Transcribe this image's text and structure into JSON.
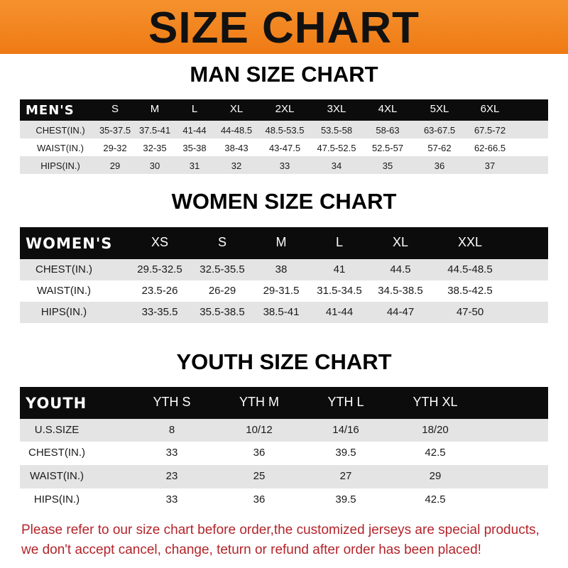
{
  "banner": {
    "title": "SIZE CHART",
    "color": "#ef7a14"
  },
  "men": {
    "heading": "MAN SIZE CHART",
    "header": [
      "MEN'S",
      "S",
      "M",
      "L",
      "XL",
      "2XL",
      "3XL",
      "4XL",
      "5XL",
      "6XL"
    ],
    "rows": [
      [
        "CHEST(IN.)",
        "35-37.5",
        "37.5-41",
        "41-44",
        "44-48.5",
        "48.5-53.5",
        "53.5-58",
        "58-63",
        "63-67.5",
        "67.5-72"
      ],
      [
        "WAIST(IN.)",
        "29-32",
        "32-35",
        "35-38",
        "38-43",
        "43-47.5",
        "47.5-52.5",
        "52.5-57",
        "57-62",
        "62-66.5"
      ],
      [
        "HIPS(IN.)",
        "29",
        "30",
        "31",
        "32",
        "33",
        "34",
        "35",
        "36",
        "37"
      ]
    ]
  },
  "women": {
    "heading": "WOMEN SIZE CHART",
    "header": [
      "WOMEN'S",
      "XS",
      "S",
      "M",
      "L",
      "XL",
      "XXL"
    ],
    "rows": [
      [
        "CHEST(IN.)",
        "29.5-32.5",
        "32.5-35.5",
        "38",
        "41",
        "44.5",
        "44.5-48.5"
      ],
      [
        "WAIST(IN.)",
        "23.5-26",
        "26-29",
        "29-31.5",
        "31.5-34.5",
        "34.5-38.5",
        "38.5-42.5"
      ],
      [
        "HIPS(IN.)",
        "33-35.5",
        "35.5-38.5",
        "38.5-41",
        "41-44",
        "44-47",
        "47-50"
      ]
    ]
  },
  "youth": {
    "heading": "YOUTH SIZE CHART",
    "header": [
      "YOUTH",
      "YTH S",
      "YTH M",
      "YTH L",
      "YTH XL"
    ],
    "rows": [
      [
        "U.S.SIZE",
        "8",
        "10/12",
        "14/16",
        "18/20"
      ],
      [
        "CHEST(IN.)",
        "33",
        "36",
        "39.5",
        "42.5"
      ],
      [
        "WAIST(IN.)",
        "23",
        "25",
        "27",
        "29"
      ],
      [
        "HIPS(IN.)",
        "33",
        "36",
        "39.5",
        "42.5"
      ]
    ]
  },
  "footer": {
    "line1": "Please refer to our size chart before order,the customized jerseys are special products,",
    "line2": "we don't accept cancel, change, teturn or refund after order has been placed!",
    "color": "#b3242a"
  }
}
